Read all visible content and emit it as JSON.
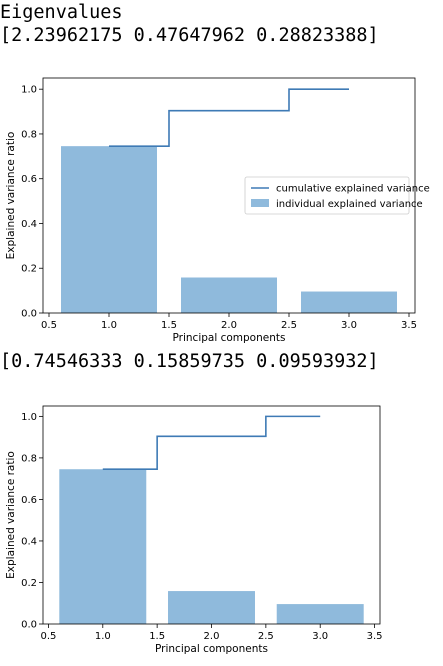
{
  "output": {
    "heading": "Eigenvalues",
    "eigenvalues": "[2.23962175 0.47647962 0.28823388]",
    "ratios": "[0.74546333 0.15859735 0.09593932]"
  },
  "chart_data": [
    {
      "type": "bar",
      "x": [
        1.0,
        2.0,
        3.0
      ],
      "series": [
        {
          "name": "individual explained variance",
          "values": [
            0.74546333,
            0.15859735,
            0.09593932
          ],
          "color": "#8fbadc"
        },
        {
          "name": "cumulative explained variance",
          "type": "step",
          "values": [
            0.74546333,
            0.90406068,
            1.0
          ],
          "color": "#3e7ab5"
        }
      ],
      "xlabel": "Principal components",
      "ylabel": "Explained variance ratio",
      "xlim": [
        0.45,
        3.55
      ],
      "ylim": [
        0.0,
        1.05
      ],
      "xticks": [
        0.5,
        1.0,
        1.5,
        2.0,
        2.5,
        3.0,
        3.5
      ],
      "yticks": [
        0.0,
        0.2,
        0.4,
        0.6,
        0.8,
        1.0
      ],
      "legend": "center-right",
      "grid": false
    },
    {
      "type": "bar",
      "x": [
        1.0,
        2.0,
        3.0
      ],
      "series": [
        {
          "name": "individual explained variance",
          "values": [
            0.74546333,
            0.15859735,
            0.09593932
          ],
          "color": "#8fbadc"
        },
        {
          "name": "cumulative explained variance",
          "type": "step",
          "values": [
            0.74546333,
            0.90406068,
            1.0
          ],
          "color": "#3e7ab5"
        }
      ],
      "xlabel": "Principal components",
      "ylabel": "Explained variance ratio",
      "xlim": [
        0.45,
        3.55
      ],
      "ylim": [
        0.0,
        1.05
      ],
      "xticks": [
        0.5,
        1.0,
        1.5,
        2.0,
        2.5,
        3.0,
        3.5
      ],
      "yticks": [
        0.0,
        0.2,
        0.4,
        0.6,
        0.8,
        1.0
      ],
      "legend": "none",
      "grid": false
    }
  ]
}
